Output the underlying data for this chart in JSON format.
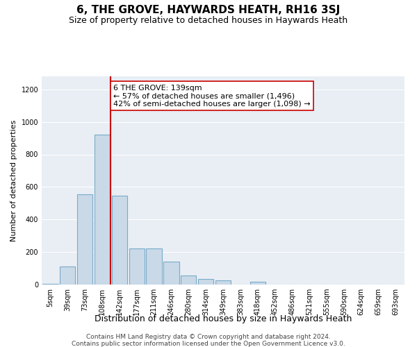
{
  "title": "6, THE GROVE, HAYWARDS HEATH, RH16 3SJ",
  "subtitle": "Size of property relative to detached houses in Haywards Heath",
  "xlabel": "Distribution of detached houses by size in Haywards Heath",
  "ylabel": "Number of detached properties",
  "bar_labels": [
    "5sqm",
    "39sqm",
    "73sqm",
    "108sqm",
    "142sqm",
    "177sqm",
    "211sqm",
    "246sqm",
    "280sqm",
    "314sqm",
    "349sqm",
    "383sqm",
    "418sqm",
    "452sqm",
    "486sqm",
    "521sqm",
    "555sqm",
    "590sqm",
    "624sqm",
    "659sqm",
    "693sqm"
  ],
  "bar_values": [
    5,
    110,
    555,
    920,
    545,
    220,
    220,
    140,
    55,
    35,
    25,
    0,
    15,
    0,
    0,
    0,
    0,
    0,
    0,
    0,
    0
  ],
  "bar_color": "#c9d9e8",
  "bar_edgecolor": "#7aaac8",
  "property_bin_index": 4,
  "annotation_text": "6 THE GROVE: 139sqm\n← 57% of detached houses are smaller (1,496)\n42% of semi-detached houses are larger (1,098) →",
  "vline_color": "#cc0000",
  "annotation_box_edgecolor": "#cc0000",
  "annotation_box_facecolor": "#ffffff",
  "ylim": [
    0,
    1280
  ],
  "yticks": [
    0,
    200,
    400,
    600,
    800,
    1000,
    1200
  ],
  "background_color": "#e8eef4",
  "footer_line1": "Contains HM Land Registry data © Crown copyright and database right 2024.",
  "footer_line2": "Contains public sector information licensed under the Open Government Licence v3.0.",
  "title_fontsize": 11,
  "subtitle_fontsize": 9,
  "xlabel_fontsize": 9,
  "ylabel_fontsize": 8,
  "tick_fontsize": 7,
  "annotation_fontsize": 8,
  "footer_fontsize": 6.5
}
